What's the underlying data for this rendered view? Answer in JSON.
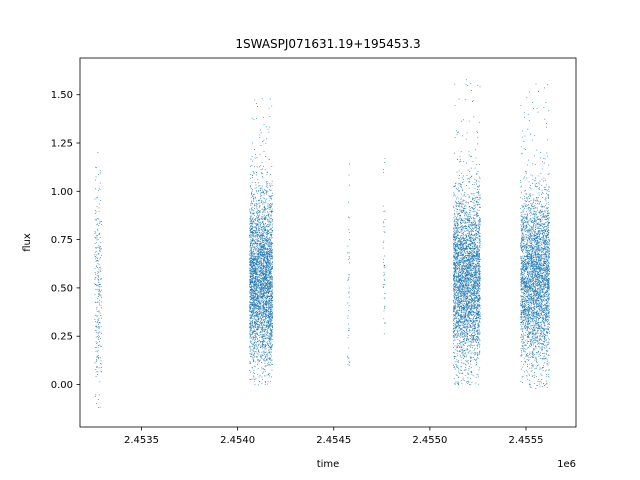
{
  "chart_data": {
    "type": "scatter",
    "title": "1SWASPJ071631.19+195453.3",
    "xlabel": "time",
    "ylabel": "flux",
    "x_offset_label": "1e6",
    "xlim": [
      2453180,
      2455760
    ],
    "ylim": [
      -0.22,
      1.69
    ],
    "x_ticks": [
      2453500,
      2454000,
      2454500,
      2455000,
      2455500
    ],
    "x_tick_labels": [
      "2.4535",
      "2.4540",
      "2.4545",
      "2.4550",
      "2.4555"
    ],
    "y_ticks": [
      0.0,
      0.25,
      0.5,
      0.75,
      1.0,
      1.25,
      1.5
    ],
    "y_tick_labels": [
      "0.00",
      "0.25",
      "0.50",
      "0.75",
      "1.00",
      "1.25",
      "1.50"
    ],
    "grid": false,
    "marker_color": "#1f77b4",
    "clusters": [
      {
        "x_start": 2453255,
        "x_end": 2453290,
        "y_min": -0.14,
        "y_max": 1.28,
        "y_center": 0.5,
        "density": "sparse"
      },
      {
        "x_start": 2454060,
        "x_end": 2454180,
        "y_min": 0.0,
        "y_max": 1.5,
        "y_center": 0.55,
        "density": "dense"
      },
      {
        "x_start": 2454570,
        "x_end": 2454580,
        "y_min": 0.1,
        "y_max": 1.15,
        "y_center": 0.5,
        "density": "very sparse"
      },
      {
        "x_start": 2454755,
        "x_end": 2454765,
        "y_min": 0.18,
        "y_max": 1.25,
        "y_center": 0.65,
        "density": "very sparse"
      },
      {
        "x_start": 2455120,
        "x_end": 2455260,
        "y_min": 0.0,
        "y_max": 1.6,
        "y_center": 0.55,
        "density": "dense"
      },
      {
        "x_start": 2455470,
        "x_end": 2455620,
        "y_min": -0.02,
        "y_max": 1.61,
        "y_center": 0.55,
        "density": "dense"
      }
    ]
  }
}
